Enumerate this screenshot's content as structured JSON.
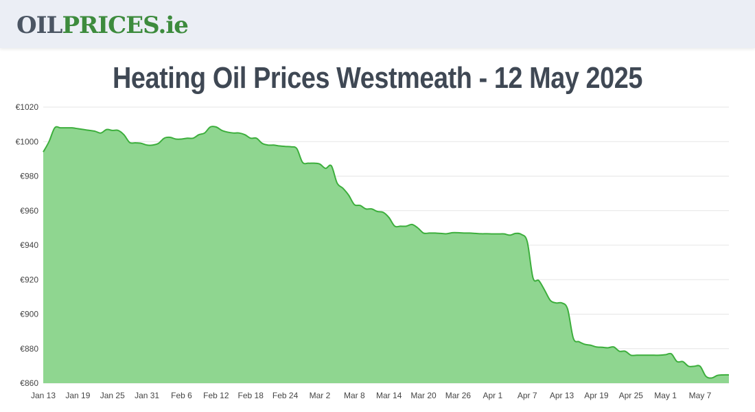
{
  "logo": {
    "oil": "OIL",
    "prices": "PRICES",
    "tld": ".ie"
  },
  "page_title": "Heating Oil Prices Westmeath - 12 May 2025",
  "colors": {
    "area_fill": "#8fd690",
    "line": "#3cae3c",
    "grid": "#e5e5e5",
    "logo_grey": "#4b5563",
    "logo_green": "#3d8b3d",
    "header_bg": "#ebeef5"
  },
  "chart_data": {
    "type": "area",
    "title": "Heating Oil Prices Westmeath - 12 May 2025",
    "xlabel": "",
    "ylabel": "",
    "x_start": "Jan 13",
    "x_end": "May 12",
    "ylim": [
      860,
      1020
    ],
    "y_ticks": [
      860,
      880,
      900,
      920,
      940,
      960,
      980,
      1000,
      1020
    ],
    "y_tick_labels": [
      "€860",
      "€880",
      "€900",
      "€920",
      "€940",
      "€960",
      "€980",
      "€1000",
      "€1020"
    ],
    "x_tick_labels": [
      "Jan 13",
      "Jan 19",
      "Jan 25",
      "Jan 31",
      "Feb 6",
      "Feb 12",
      "Feb 18",
      "Feb 24",
      "Mar 2",
      "Mar 8",
      "Mar 14",
      "Mar 20",
      "Mar 26",
      "Apr 1",
      "Apr 7",
      "Apr 13",
      "Apr 19",
      "Apr 25",
      "May 1",
      "May 7"
    ],
    "grid": true,
    "legend": "none",
    "series": [
      {
        "points": [
          [
            "Jan 13",
            994
          ],
          [
            "Jan 14",
            1000
          ],
          [
            "Jan 15",
            1008
          ],
          [
            "Jan 16",
            1008
          ],
          [
            "Jan 17",
            1008
          ],
          [
            "Jan 18",
            1008
          ],
          [
            "Jan 19",
            1007.5
          ],
          [
            "Jan 20",
            1007
          ],
          [
            "Jan 21",
            1006.5
          ],
          [
            "Jan 22",
            1006
          ],
          [
            "Jan 23",
            1005
          ],
          [
            "Jan 24",
            1007
          ],
          [
            "Jan 25",
            1006.5
          ],
          [
            "Jan 26",
            1006.5
          ],
          [
            "Jan 27",
            1004
          ],
          [
            "Jan 28",
            999.5
          ],
          [
            "Jan 29",
            999.3
          ],
          [
            "Jan 30",
            999
          ],
          [
            "Jan 31",
            998
          ],
          [
            "Feb 1",
            998
          ],
          [
            "Feb 2",
            999
          ],
          [
            "Feb 3",
            1002
          ],
          [
            "Feb 4",
            1002.5
          ],
          [
            "Feb 5",
            1001.5
          ],
          [
            "Feb 6",
            1001.5
          ],
          [
            "Feb 7",
            1002
          ],
          [
            "Feb 8",
            1002
          ],
          [
            "Feb 9",
            1004
          ],
          [
            "Feb 10",
            1005
          ],
          [
            "Feb 11",
            1008.5
          ],
          [
            "Feb 12",
            1008.5
          ],
          [
            "Feb 13",
            1006.5
          ],
          [
            "Feb 14",
            1005.5
          ],
          [
            "Feb 15",
            1005
          ],
          [
            "Feb 16",
            1005
          ],
          [
            "Feb 17",
            1004
          ],
          [
            "Feb 18",
            1002
          ],
          [
            "Feb 19",
            1002
          ],
          [
            "Feb 20",
            999
          ],
          [
            "Feb 21",
            998
          ],
          [
            "Feb 22",
            998
          ],
          [
            "Feb 23",
            997.5
          ],
          [
            "Feb 24",
            997.2
          ],
          [
            "Feb 25",
            997
          ],
          [
            "Feb 26",
            996
          ],
          [
            "Feb 27",
            988
          ],
          [
            "Feb 28",
            987.5
          ],
          [
            "Mar 1",
            987.5
          ],
          [
            "Mar 2",
            987
          ],
          [
            "Mar 3",
            984.5
          ],
          [
            "Mar 4",
            986
          ],
          [
            "Mar 5",
            976
          ],
          [
            "Mar 6",
            973
          ],
          [
            "Mar 7",
            969
          ],
          [
            "Mar 8",
            963.5
          ],
          [
            "Mar 9",
            963
          ],
          [
            "Mar 10",
            961
          ],
          [
            "Mar 11",
            961
          ],
          [
            "Mar 12",
            959.5
          ],
          [
            "Mar 13",
            959
          ],
          [
            "Mar 14",
            956
          ],
          [
            "Mar 15",
            951
          ],
          [
            "Mar 16",
            951
          ],
          [
            "Mar 17",
            951
          ],
          [
            "Mar 18",
            952
          ],
          [
            "Mar 19",
            950
          ],
          [
            "Mar 20",
            947
          ],
          [
            "Mar 21",
            947
          ],
          [
            "Mar 22",
            947
          ],
          [
            "Mar 23",
            946.8
          ],
          [
            "Mar 24",
            946.6
          ],
          [
            "Mar 25",
            947.2
          ],
          [
            "Mar 26",
            947.2
          ],
          [
            "Mar 27",
            947
          ],
          [
            "Mar 28",
            947
          ],
          [
            "Mar 29",
            946.8
          ],
          [
            "Mar 30",
            946.6
          ],
          [
            "Mar 31",
            946.6
          ],
          [
            "Apr 1",
            946.5
          ],
          [
            "Apr 2",
            946.5
          ],
          [
            "Apr 3",
            946.5
          ],
          [
            "Apr 4",
            945.8
          ],
          [
            "Apr 5",
            946.8
          ],
          [
            "Apr 6",
            946.2
          ],
          [
            "Apr 7",
            942
          ],
          [
            "Apr 8",
            921
          ],
          [
            "Apr 9",
            919.5
          ],
          [
            "Apr 10",
            914
          ],
          [
            "Apr 11",
            908
          ],
          [
            "Apr 12",
            906.5
          ],
          [
            "Apr 13",
            906.5
          ],
          [
            "Apr 14",
            903
          ],
          [
            "Apr 15",
            886
          ],
          [
            "Apr 16",
            884
          ],
          [
            "Apr 17",
            882.5
          ],
          [
            "Apr 18",
            882
          ],
          [
            "Apr 19",
            881
          ],
          [
            "Apr 20",
            880.8
          ],
          [
            "Apr 21",
            880.5
          ],
          [
            "Apr 22",
            881
          ],
          [
            "Apr 23",
            878.5
          ],
          [
            "Apr 24",
            878.5
          ],
          [
            "Apr 25",
            876.2
          ],
          [
            "Apr 26",
            876.2
          ],
          [
            "Apr 27",
            876.2
          ],
          [
            "Apr 28",
            876.2
          ],
          [
            "Apr 29",
            876.2
          ],
          [
            "Apr 30",
            876.2
          ],
          [
            "May 1",
            876.5
          ],
          [
            "May 2",
            877
          ],
          [
            "May 3",
            872.5
          ],
          [
            "May 4",
            872.5
          ],
          [
            "May 5",
            869.8
          ],
          [
            "May 6",
            869.8
          ],
          [
            "May 7",
            869.8
          ],
          [
            "May 8",
            864
          ],
          [
            "May 9",
            863
          ],
          [
            "May 10",
            864.5
          ],
          [
            "May 11",
            864.8
          ],
          [
            "May 12",
            864.8
          ]
        ]
      }
    ]
  }
}
